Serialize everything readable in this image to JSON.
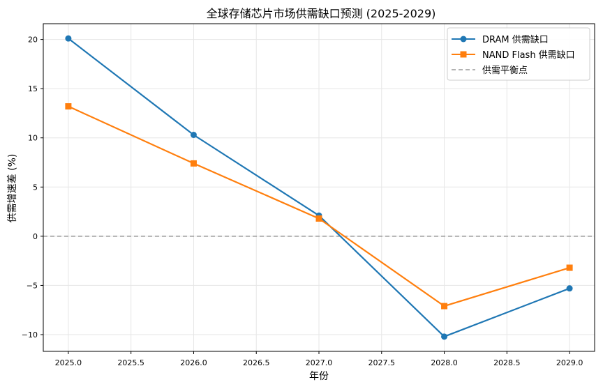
{
  "chart_data": {
    "type": "line",
    "title": "全球存储芯片市场供需缺口预测 (2025-2029)",
    "xlabel": "年份",
    "ylabel": "供需增速差 (%)",
    "x": [
      2025,
      2026,
      2027,
      2028,
      2029
    ],
    "xlim": [
      2024.8,
      2029.2
    ],
    "ylim": [
      -11.7,
      21.6
    ],
    "grid": true,
    "x_ticks": [
      2025.0,
      2025.5,
      2026.0,
      2026.5,
      2027.0,
      2027.5,
      2028.0,
      2028.5,
      2029.0
    ],
    "x_tick_labels": [
      "2025.0",
      "2025.5",
      "2026.0",
      "2026.5",
      "2027.0",
      "2027.5",
      "2028.0",
      "2028.5",
      "2029.0"
    ],
    "y_ticks": [
      -10,
      -5,
      0,
      5,
      10,
      15,
      20
    ],
    "y_tick_labels": [
      "−10",
      "−5",
      "0",
      "5",
      "10",
      "15",
      "20"
    ],
    "series": [
      {
        "name": "DRAM 供需缺口",
        "values": [
          20.1,
          10.3,
          2.1,
          -10.2,
          -5.3
        ],
        "color": "#1f77b4",
        "marker": "circle"
      },
      {
        "name": "NAND Flash 供需缺口",
        "values": [
          13.2,
          7.4,
          1.8,
          -7.1,
          -3.2
        ],
        "color": "#ff7f0e",
        "marker": "square"
      }
    ],
    "reference_line": {
      "name": "供需平衡点",
      "y": 0,
      "color": "#999999",
      "style": "dashed"
    },
    "legend_position": "top-right"
  }
}
